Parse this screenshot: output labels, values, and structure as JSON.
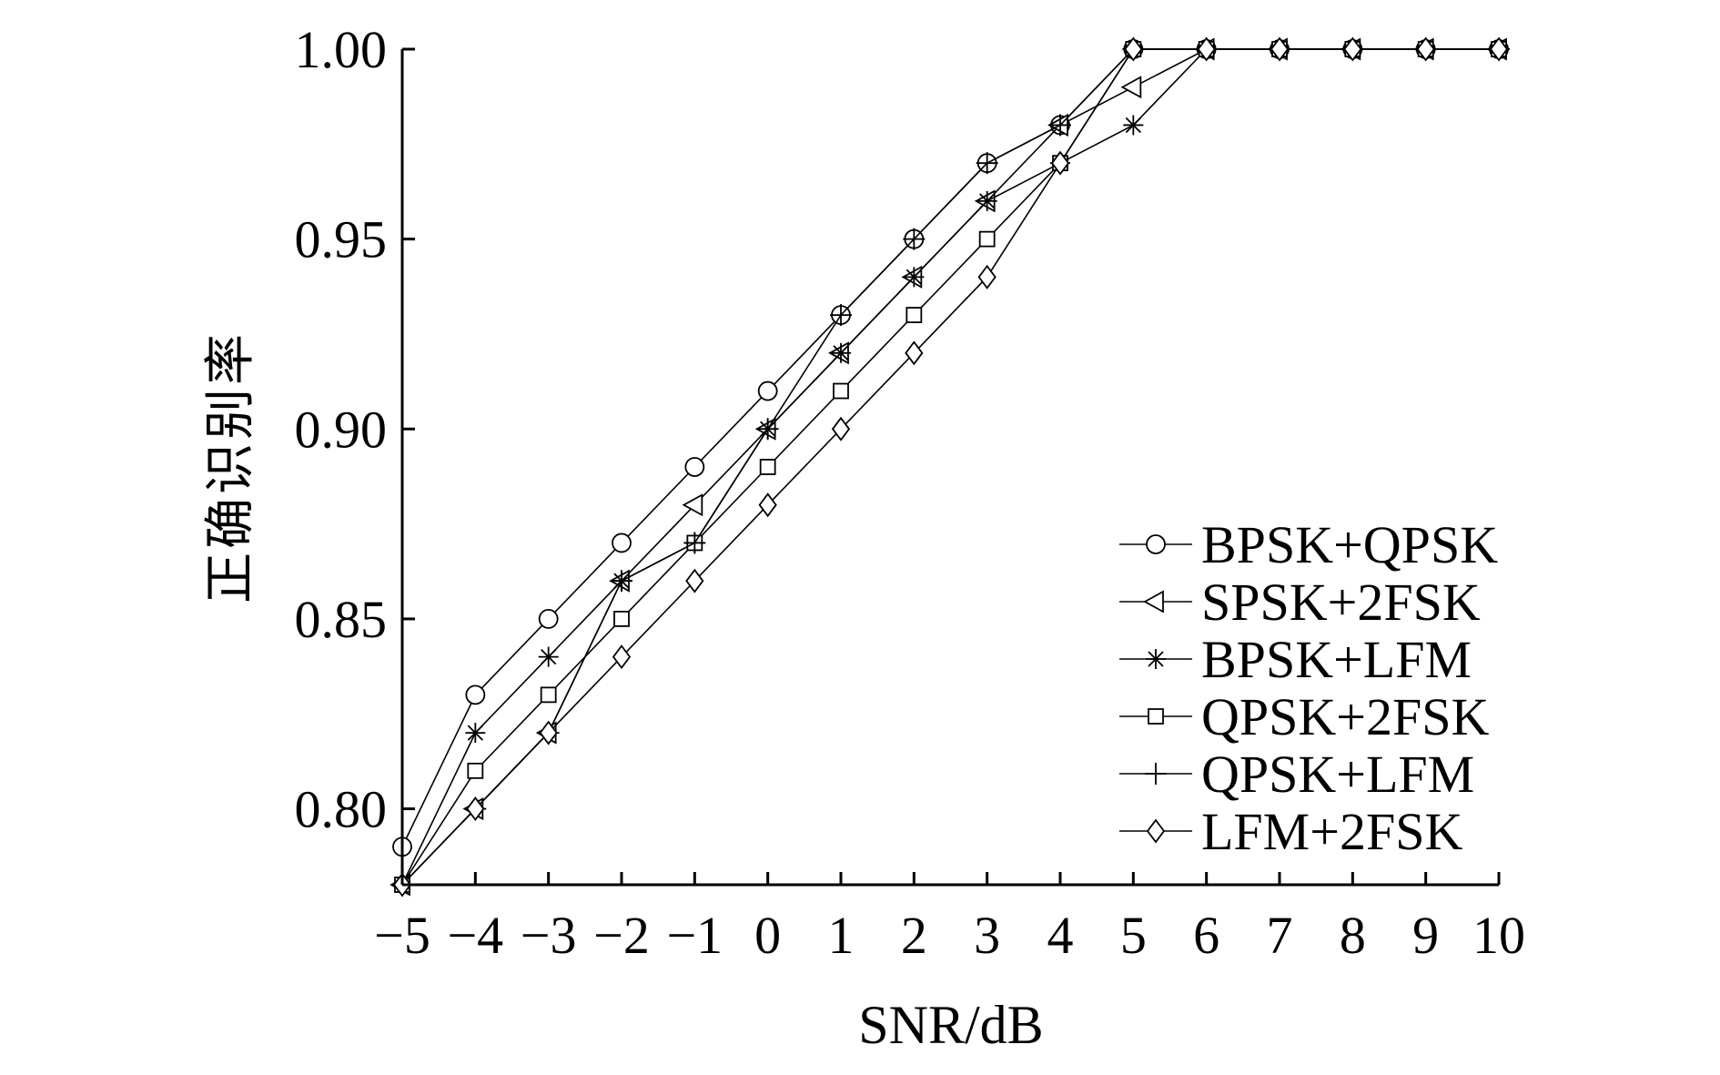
{
  "chart_data": {
    "type": "line",
    "xlabel": "SNR/dB",
    "ylabel": "正确识别率",
    "x": [
      -5,
      -4,
      -3,
      -2,
      -1,
      0,
      1,
      2,
      3,
      4,
      5,
      6,
      7,
      8,
      9,
      10
    ],
    "x_tick_labels": [
      "−5",
      "−4",
      "−3",
      "−2",
      "−1",
      "0",
      "1",
      "2",
      "3",
      "4",
      "5",
      "6",
      "7",
      "8",
      "9",
      "10"
    ],
    "y_tick_values": [
      0.8,
      0.85,
      0.9,
      0.95,
      1.0
    ],
    "y_tick_labels": [
      "0.80",
      "0.85",
      "0.90",
      "0.95",
      "1.00"
    ],
    "xlim": [
      -5,
      10
    ],
    "ylim": [
      0.78,
      1.0
    ],
    "grid": false,
    "legend_position": "lower-right",
    "series": [
      {
        "name": "BPSK+QPSK",
        "marker": "circle",
        "values": [
          0.79,
          0.83,
          0.85,
          0.87,
          0.89,
          0.91,
          0.93,
          0.95,
          0.97,
          0.98,
          1.0,
          1.0,
          1.0,
          1.0,
          1.0,
          1.0
        ]
      },
      {
        "name": "SPSK+2FSK",
        "marker": "triangle-left",
        "values": [
          0.78,
          0.8,
          0.82,
          0.86,
          0.88,
          0.9,
          0.92,
          0.94,
          0.96,
          0.98,
          0.99,
          1.0,
          1.0,
          1.0,
          1.0,
          1.0
        ]
      },
      {
        "name": "BPSK+LFM",
        "marker": "asterisk",
        "values": [
          0.78,
          0.82,
          0.84,
          0.86,
          0.87,
          0.9,
          0.92,
          0.94,
          0.96,
          0.97,
          0.98,
          1.0,
          1.0,
          1.0,
          1.0,
          1.0
        ]
      },
      {
        "name": "QPSK+2FSK",
        "marker": "square",
        "values": [
          0.78,
          0.81,
          0.83,
          0.85,
          0.87,
          0.89,
          0.91,
          0.93,
          0.95,
          0.97,
          1.0,
          1.0,
          1.0,
          1.0,
          1.0,
          1.0
        ]
      },
      {
        "name": "QPSK+LFM",
        "marker": "plus",
        "values": [
          0.78,
          0.8,
          0.82,
          0.86,
          0.87,
          0.9,
          0.93,
          0.95,
          0.97,
          0.98,
          1.0,
          1.0,
          1.0,
          1.0,
          1.0,
          1.0
        ]
      },
      {
        "name": "LFM+2FSK",
        "marker": "diamond",
        "values": [
          0.78,
          0.8,
          0.82,
          0.84,
          0.86,
          0.88,
          0.9,
          0.92,
          0.94,
          0.97,
          1.0,
          1.0,
          1.0,
          1.0,
          1.0,
          1.0
        ]
      }
    ]
  }
}
